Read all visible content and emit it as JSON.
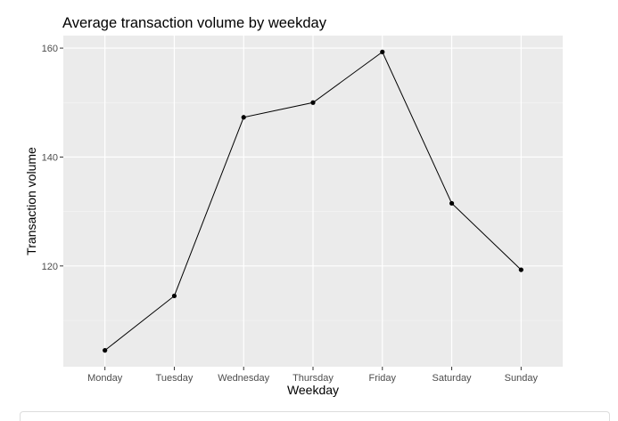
{
  "chart_data": {
    "type": "line",
    "title": "Average transaction volume by weekday",
    "xlabel": "Weekday",
    "ylabel": "Transaction volume",
    "categories": [
      "Monday",
      "Tuesday",
      "Wednesday",
      "Thursday",
      "Friday",
      "Saturday",
      "Sunday"
    ],
    "values": [
      104.5,
      114.5,
      147.3,
      150.0,
      159.3,
      131.5,
      119.3
    ],
    "ylim": [
      101.5,
      162.3
    ],
    "yticks": [
      120,
      140,
      160
    ],
    "ytick_labels": [
      "120",
      "140",
      "160"
    ],
    "grid": true,
    "colors": {
      "panel": "#ebebeb",
      "grid_major": "#ffffff",
      "grid_minor": "#f5f5f5",
      "line": "#000000",
      "tick_text": "#4d4d4d",
      "title_text": "#000000"
    }
  }
}
